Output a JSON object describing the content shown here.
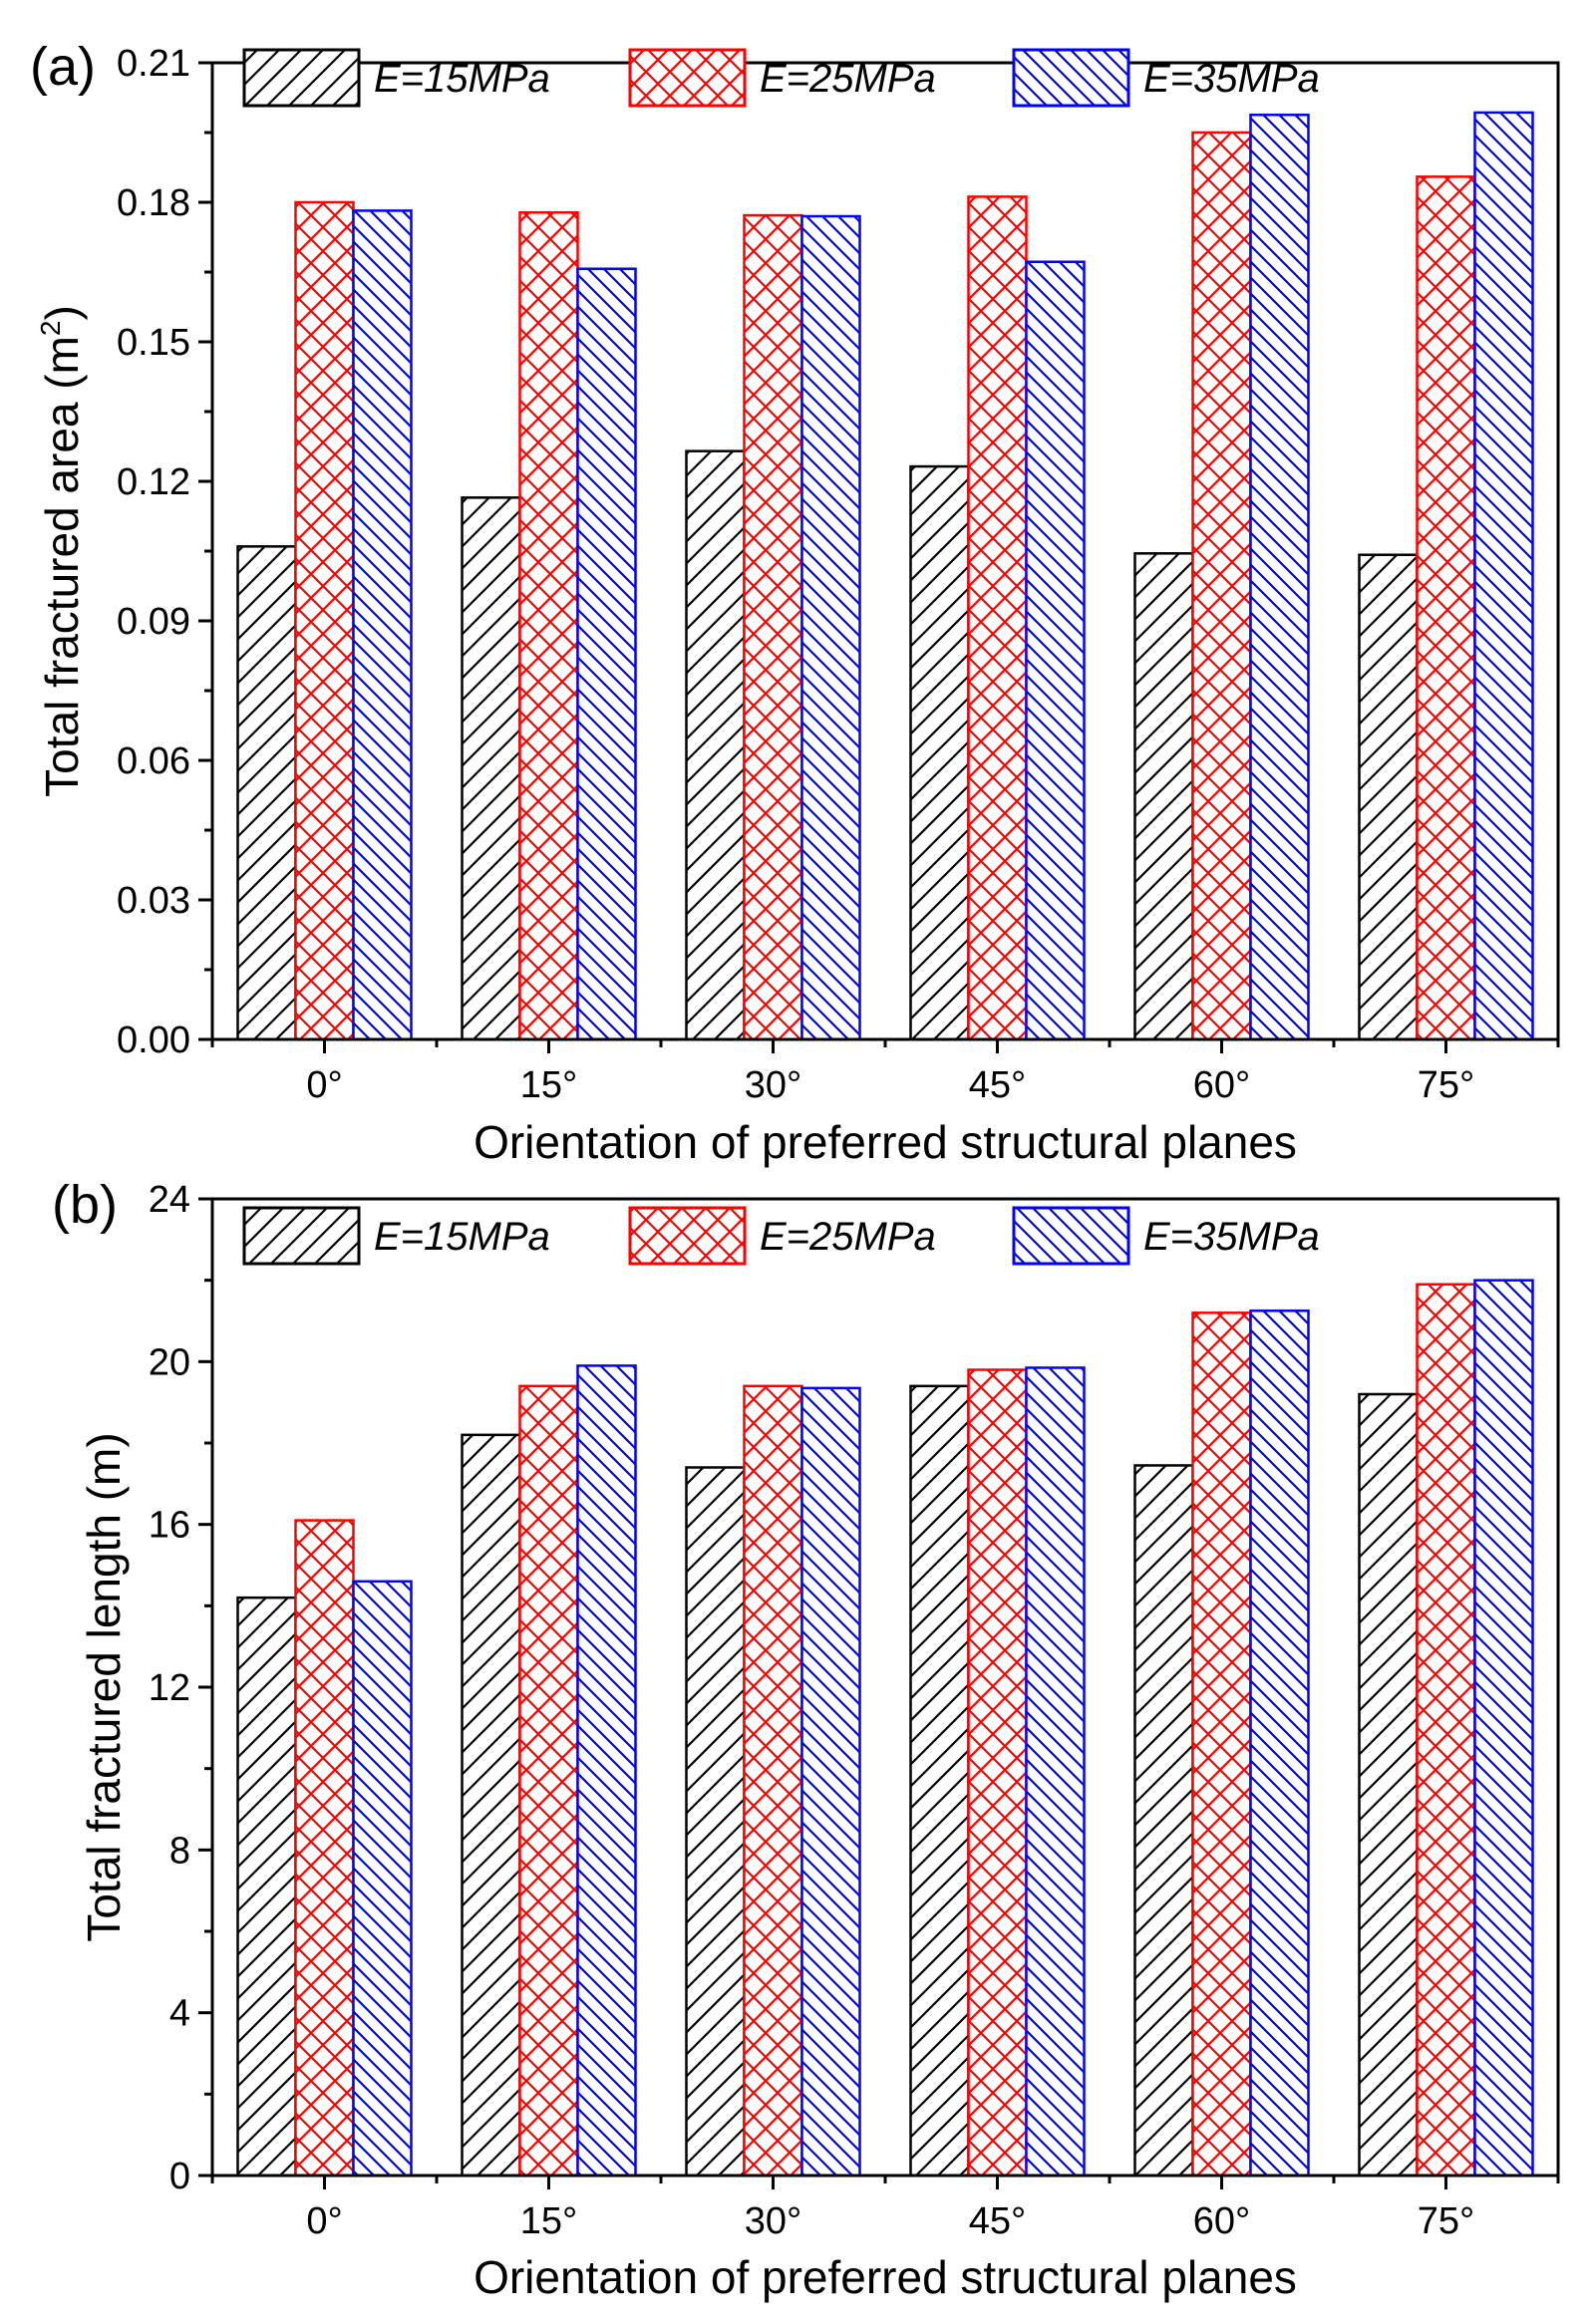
{
  "chart_data": [
    {
      "type": "bar",
      "panel_label": "(a)",
      "categories": [
        "0°",
        "15°",
        "30°",
        "45°",
        "60°",
        "75°"
      ],
      "series": [
        {
          "name": "E=15MPa",
          "color": "#000000",
          "hatch": "diagonal-up",
          "values": [
            0.106,
            0.1165,
            0.1265,
            0.1232,
            0.1045,
            0.1042
          ]
        },
        {
          "name": "E=25MPa",
          "color": "#ff0000",
          "hatch": "cross",
          "values": [
            0.18,
            0.1778,
            0.1772,
            0.1812,
            0.195,
            0.1855
          ]
        },
        {
          "name": "E=35MPa",
          "color": "#0000ff",
          "hatch": "diagonal-down",
          "values": [
            0.1782,
            0.1657,
            0.177,
            0.1672,
            0.1988,
            0.1993
          ]
        }
      ],
      "ylabel_main": "Total fractured area (m",
      "ylabel_sup": "2",
      "ylabel_end": ")",
      "xlabel": "Orientation of preferred structural planes",
      "ylim": [
        0,
        0.21
      ],
      "yticks": [
        "0.00",
        "0.03",
        "0.06",
        "0.09",
        "0.12",
        "0.15",
        "0.18",
        "0.21"
      ],
      "legend_position": "top"
    },
    {
      "type": "bar",
      "panel_label": "(b)",
      "categories": [
        "0°",
        "15°",
        "30°",
        "45°",
        "60°",
        "75°"
      ],
      "series": [
        {
          "name": "E=15MPa",
          "color": "#000000",
          "hatch": "diagonal-up",
          "values": [
            14.2,
            18.2,
            17.4,
            19.4,
            17.45,
            19.2
          ]
        },
        {
          "name": "E=25MPa",
          "color": "#ff0000",
          "hatch": "cross",
          "values": [
            16.1,
            19.4,
            19.4,
            19.8,
            21.2,
            21.9
          ]
        },
        {
          "name": "E=35MPa",
          "color": "#0000ff",
          "hatch": "diagonal-down",
          "values": [
            14.6,
            19.9,
            19.35,
            19.85,
            21.25,
            22.0
          ]
        }
      ],
      "ylabel_main": "Total fractured length (m)",
      "ylabel_sup": "",
      "ylabel_end": "",
      "xlabel": "Orientation of preferred structural planes",
      "ylim": [
        0,
        24
      ],
      "yticks": [
        "0",
        "4",
        "8",
        "12",
        "16",
        "20",
        "24"
      ],
      "legend_position": "top"
    }
  ]
}
